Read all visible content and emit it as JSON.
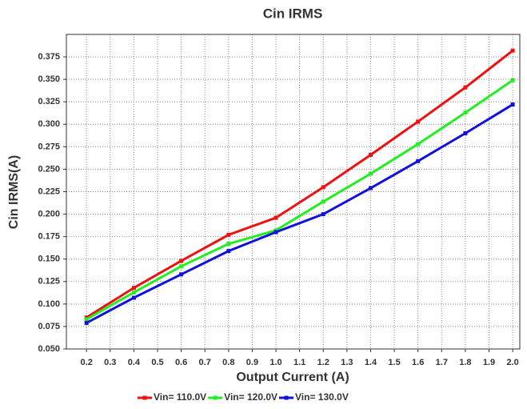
{
  "chart_data": {
    "type": "line",
    "title": "Cin IRMS",
    "x_label": "Output Current (A)",
    "y_label": "Cin IRMS(A)",
    "x": [
      0.2,
      0.4,
      0.6,
      0.8,
      1.0,
      1.2,
      1.4,
      1.6,
      1.8,
      2.0
    ],
    "series": [
      {
        "name": "Vin= 110.0V",
        "color": "#ee1111",
        "values": [
          0.085,
          0.118,
          0.148,
          0.177,
          0.196,
          0.23,
          0.266,
          0.303,
          0.341,
          0.382
        ]
      },
      {
        "name": "Vin= 120.0V",
        "color": "#22ee22",
        "values": [
          0.083,
          0.113,
          0.142,
          0.167,
          0.182,
          0.214,
          0.245,
          0.278,
          0.313,
          0.349
        ]
      },
      {
        "name": "Vin= 130.0V",
        "color": "#1111dd",
        "values": [
          0.079,
          0.107,
          0.133,
          0.159,
          0.18,
          0.2,
          0.229,
          0.259,
          0.29,
          0.322
        ]
      }
    ],
    "xlim": [
      0.115,
      2.03
    ],
    "ylim": [
      0.05,
      0.4
    ],
    "xticks": [
      0.2,
      0.3,
      0.4,
      0.5,
      0.6,
      0.7,
      0.8,
      0.9,
      {
        "value": 1,
        "label": "1.0"
      },
      1.1,
      1.2,
      1.3,
      1.4,
      1.5,
      1.6,
      1.7,
      1.8,
      1.9,
      {
        "value": 2,
        "label": "2.0"
      }
    ],
    "yticks": [
      {
        "value": 0.05,
        "label": "0.050"
      },
      0.075,
      {
        "value": 0.1,
        "label": "0.100"
      },
      0.125,
      {
        "value": 0.15,
        "label": "0.150"
      },
      0.175,
      {
        "value": 0.2,
        "label": "0.200"
      },
      0.225,
      {
        "value": 0.25,
        "label": "0.250"
      },
      0.275,
      {
        "value": 0.3,
        "label": "0.300"
      },
      0.325,
      {
        "value": 0.35,
        "label": "0.350"
      },
      0.375
    ],
    "grid": true,
    "legend": "bottom"
  }
}
